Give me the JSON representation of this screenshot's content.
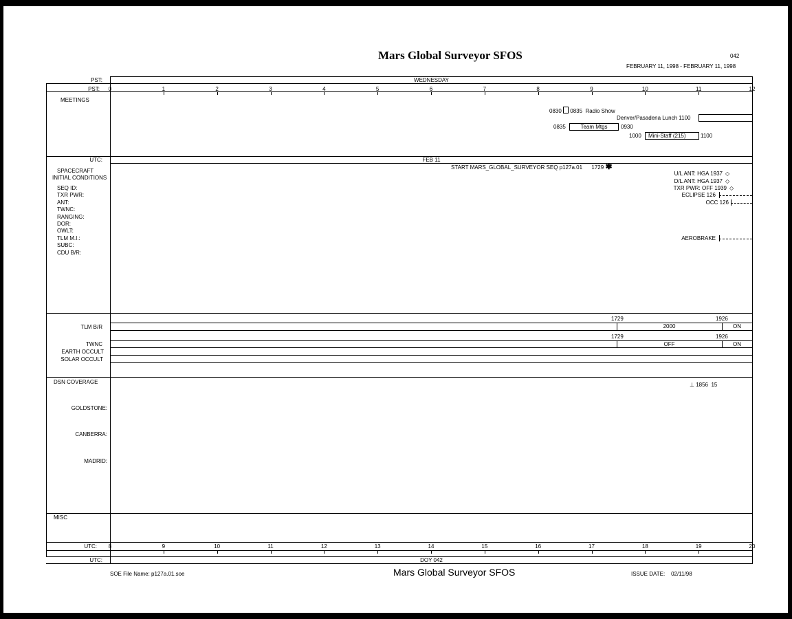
{
  "header": {
    "title": "Mars Global Surveyor SFOS",
    "doc_number": "042",
    "date_range": "FEBRUARY 11, 1998 - FEBRUARY 11, 1998"
  },
  "pst_day": {
    "label": "PST:",
    "value": "WEDNESDAY"
  },
  "pst_axis": {
    "label": "PST:",
    "ticks": [
      "0",
      "1",
      "2",
      "3",
      "4",
      "5",
      "6",
      "7",
      "8",
      "9",
      "10",
      "11",
      "12"
    ]
  },
  "meetings": {
    "label": "MEETINGS",
    "items": [
      {
        "start": "0830",
        "end": "0835",
        "name": "Radio Show"
      },
      {
        "name": "Denver/Pasadena Lunch",
        "start": "1100"
      },
      {
        "start": "0835",
        "name": "Team Mtgs",
        "end": "0930"
      },
      {
        "start": "1000",
        "name": "Mini-Staff  (215)",
        "end": "1100"
      }
    ]
  },
  "utc_date": {
    "label": "UTC:",
    "value": "FEB 11"
  },
  "spacecraft": {
    "title1": "SPACECRAFT",
    "title2": "INITIAL CONDITIONS",
    "fields": [
      "SEQ ID:",
      "TXR PWR:",
      "ANT:",
      "TWNC:",
      "RANGING:",
      "DOR:",
      "OWLT:",
      "TLM M.I.:",
      "SUBC:",
      "CDU B/R:"
    ],
    "events": {
      "start_seq": "START MARS_GLOBAL_SURVEYOR SEQ p127a.01",
      "start_time": "1729",
      "ul_ant": "U/L ANT: HGA 1937",
      "dl_ant": "D/L ANT: HGA 1937",
      "txr_pwr": "TXR PWR: OFF 1939",
      "eclipse": "ECLIPSE 126",
      "occ": "OCC 126",
      "aerobrake": "AEROBRAKE"
    }
  },
  "telemetry": {
    "tlm_br": {
      "label": "TLM B/R",
      "t1": "1729",
      "t2": "1926",
      "v1": "2000",
      "v2": "ON"
    },
    "twnc": {
      "label": "TWNC",
      "t1": "1729",
      "t2": "1926",
      "v1": "OFF",
      "v2": "ON"
    },
    "earth_occult": "EARTH OCCULT",
    "solar_occult": "SOLAR OCCULT"
  },
  "dsn": {
    "label": "DSN COVERAGE",
    "event_time": "1856",
    "event_value": "15",
    "stations": [
      "GOLDSTONE:",
      "CANBERRA:",
      "MADRID:"
    ]
  },
  "misc": {
    "label": "MISC"
  },
  "utc_axis": {
    "label": "UTC:",
    "ticks": [
      "8",
      "9",
      "10",
      "11",
      "12",
      "13",
      "14",
      "15",
      "16",
      "17",
      "18",
      "19",
      "20"
    ]
  },
  "doy": {
    "label": "UTC:",
    "value": "DOY 042"
  },
  "footer": {
    "file_name": "SOE File Name: p127a.01.soe",
    "title": "Mars Global Surveyor SFOS",
    "issue_label": "ISSUE DATE:",
    "issue_date": "02/11/98"
  }
}
